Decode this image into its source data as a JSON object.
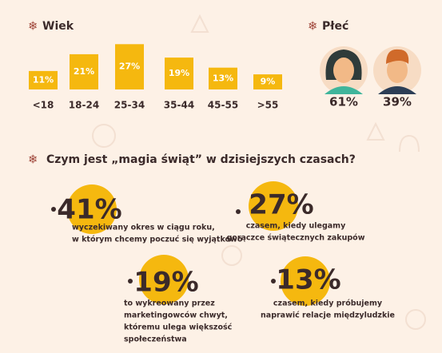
{
  "wiek": {
    "title": "Wiek",
    "categories": [
      "<18",
      "18-24",
      "25-34",
      "35-44",
      "45-55",
      ">55"
    ],
    "values": [
      11,
      21,
      27,
      19,
      13,
      9
    ],
    "value_labels": [
      "11%",
      "21%",
      "27%",
      "19%",
      "13%",
      "9%"
    ]
  },
  "plec": {
    "title": "Płeć",
    "items": [
      {
        "label": "61%"
      },
      {
        "label": "39%"
      }
    ]
  },
  "question": "Czym jest „magia świąt” w dzisiejszych czasach?",
  "stats": [
    {
      "value": "41%",
      "lines": [
        "wyczekiwany okres w ciągu roku,",
        "w którym chcemy poczuć się wyjątkowo"
      ]
    },
    {
      "value": "27%",
      "lines": [
        "czasem, kiedy ulegamy",
        "gorączce świątecznych zakupów"
      ]
    },
    {
      "value": "19%",
      "lines": [
        "to wykreowany przez",
        "marketingowców chwyt,",
        "któremu ulega większość",
        "społeczeństwa"
      ]
    },
    {
      "value": "13%",
      "lines": [
        "czasem, kiedy próbujemy",
        "naprawić relacje międzyludzkie"
      ]
    }
  ]
}
